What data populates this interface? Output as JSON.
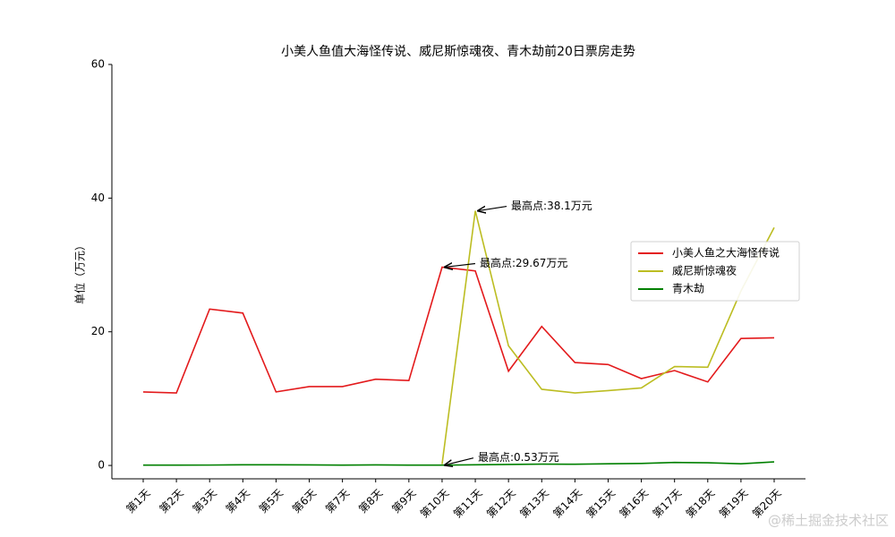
{
  "chart_data": {
    "type": "line",
    "title": "小美人鱼值大海怪传说、威尼斯惊魂夜、青木劫前20日票房走势",
    "y_label": "单位（万元）",
    "categories": [
      "第1天",
      "第2天",
      "第3天",
      "第4天",
      "第5天",
      "第6天",
      "第7天",
      "第8天",
      "第9天",
      "第10天",
      "第11天",
      "第12天",
      "第13天",
      "第14天",
      "第15天",
      "第16天",
      "第17天",
      "第18天",
      "第19天",
      "第20天"
    ],
    "series": [
      {
        "name": "小美人鱼之大海怪传说",
        "color": "#e31a1c",
        "values": [
          11.0,
          10.85,
          23.4,
          22.8,
          11.0,
          11.8,
          11.8,
          12.9,
          12.7,
          29.67,
          29.1,
          14.1,
          20.8,
          15.4,
          15.1,
          13.0,
          14.2,
          12.5,
          19.0,
          19.1
        ]
      },
      {
        "name": "威尼斯惊魂夜",
        "color": "#bcbd22",
        "values": [
          null,
          null,
          null,
          null,
          null,
          null,
          null,
          null,
          null,
          0.2,
          38.1,
          17.9,
          11.4,
          10.85,
          11.2,
          11.6,
          14.8,
          14.7,
          26.1,
          35.6
        ]
      },
      {
        "name": "青木劫",
        "color": "#008000",
        "values": [
          0.05,
          0.05,
          0.06,
          0.1,
          0.1,
          0.08,
          0.05,
          0.08,
          0.05,
          0.05,
          0.1,
          0.15,
          0.2,
          0.18,
          0.25,
          0.3,
          0.45,
          0.4,
          0.25,
          0.53
        ]
      }
    ],
    "annotations": [
      "最高点:38.1万元",
      "最高点:29.67万元",
      "最高点:0.53万元"
    ],
    "ylim": [
      -2,
      60
    ],
    "yticks": [
      0,
      20,
      40,
      60
    ],
    "legend": "right",
    "watermark": "@稀土掘金技术社区"
  }
}
